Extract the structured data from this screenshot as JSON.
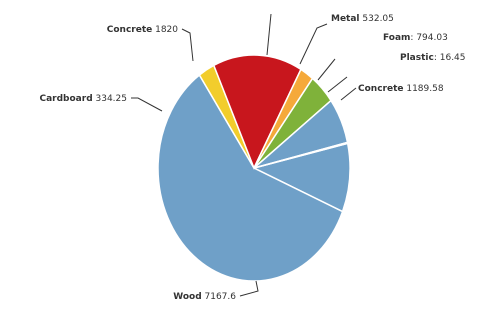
{
  "chart_data": {
    "type": "pie",
    "title": "",
    "start_angle_deg": 0,
    "direction": "clockwise",
    "slices": [
      {
        "label": "Concrete",
        "value": 1189.58,
        "value_text": "1189.58",
        "color": "#6fa0c8"
      },
      {
        "label": "Wood",
        "value": 7167.6,
        "value_text": "7167.6",
        "color": "#6fa0c8"
      },
      {
        "label": "Cardboard",
        "value": 334.25,
        "value_text": "334.25",
        "color": "#f2cd2c"
      },
      {
        "label": "Concrete",
        "value": 1820,
        "value_text": "1820",
        "color": "#c8161d"
      },
      {
        "label": "",
        "value": 280,
        "value_text": "",
        "color": "#f5a93a"
      },
      {
        "label": "Metal",
        "value": 532.05,
        "value_text": "532.05",
        "color": "#7fb23a"
      },
      {
        "label": "Foam",
        "value": 794.03,
        "value_text": "794.03",
        "color": "#6fa0c8"
      },
      {
        "label": "Plastic",
        "value": 16.45,
        "value_text": "16.45",
        "color": "#6fa0c8"
      }
    ]
  }
}
